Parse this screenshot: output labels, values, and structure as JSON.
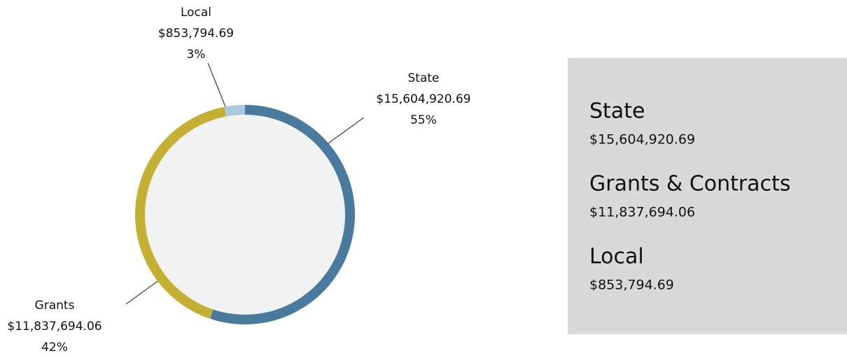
{
  "chart_data": {
    "type": "donut",
    "categories": [
      "State",
      "Grants",
      "Local"
    ],
    "values": [
      15604920.69,
      11837694.06,
      853794.69
    ],
    "value_labels": [
      "$15,604,920.69",
      "$11,837,694.06",
      "$853,794.69"
    ],
    "percents": [
      55,
      42,
      3
    ],
    "percent_labels": [
      "55%",
      "42%",
      "3%"
    ],
    "colors": [
      "#4a7a9e",
      "#c4b032",
      "#a9c8e0"
    ],
    "legend_names": [
      "State",
      "Grants & Contracts",
      "Local"
    ]
  }
}
